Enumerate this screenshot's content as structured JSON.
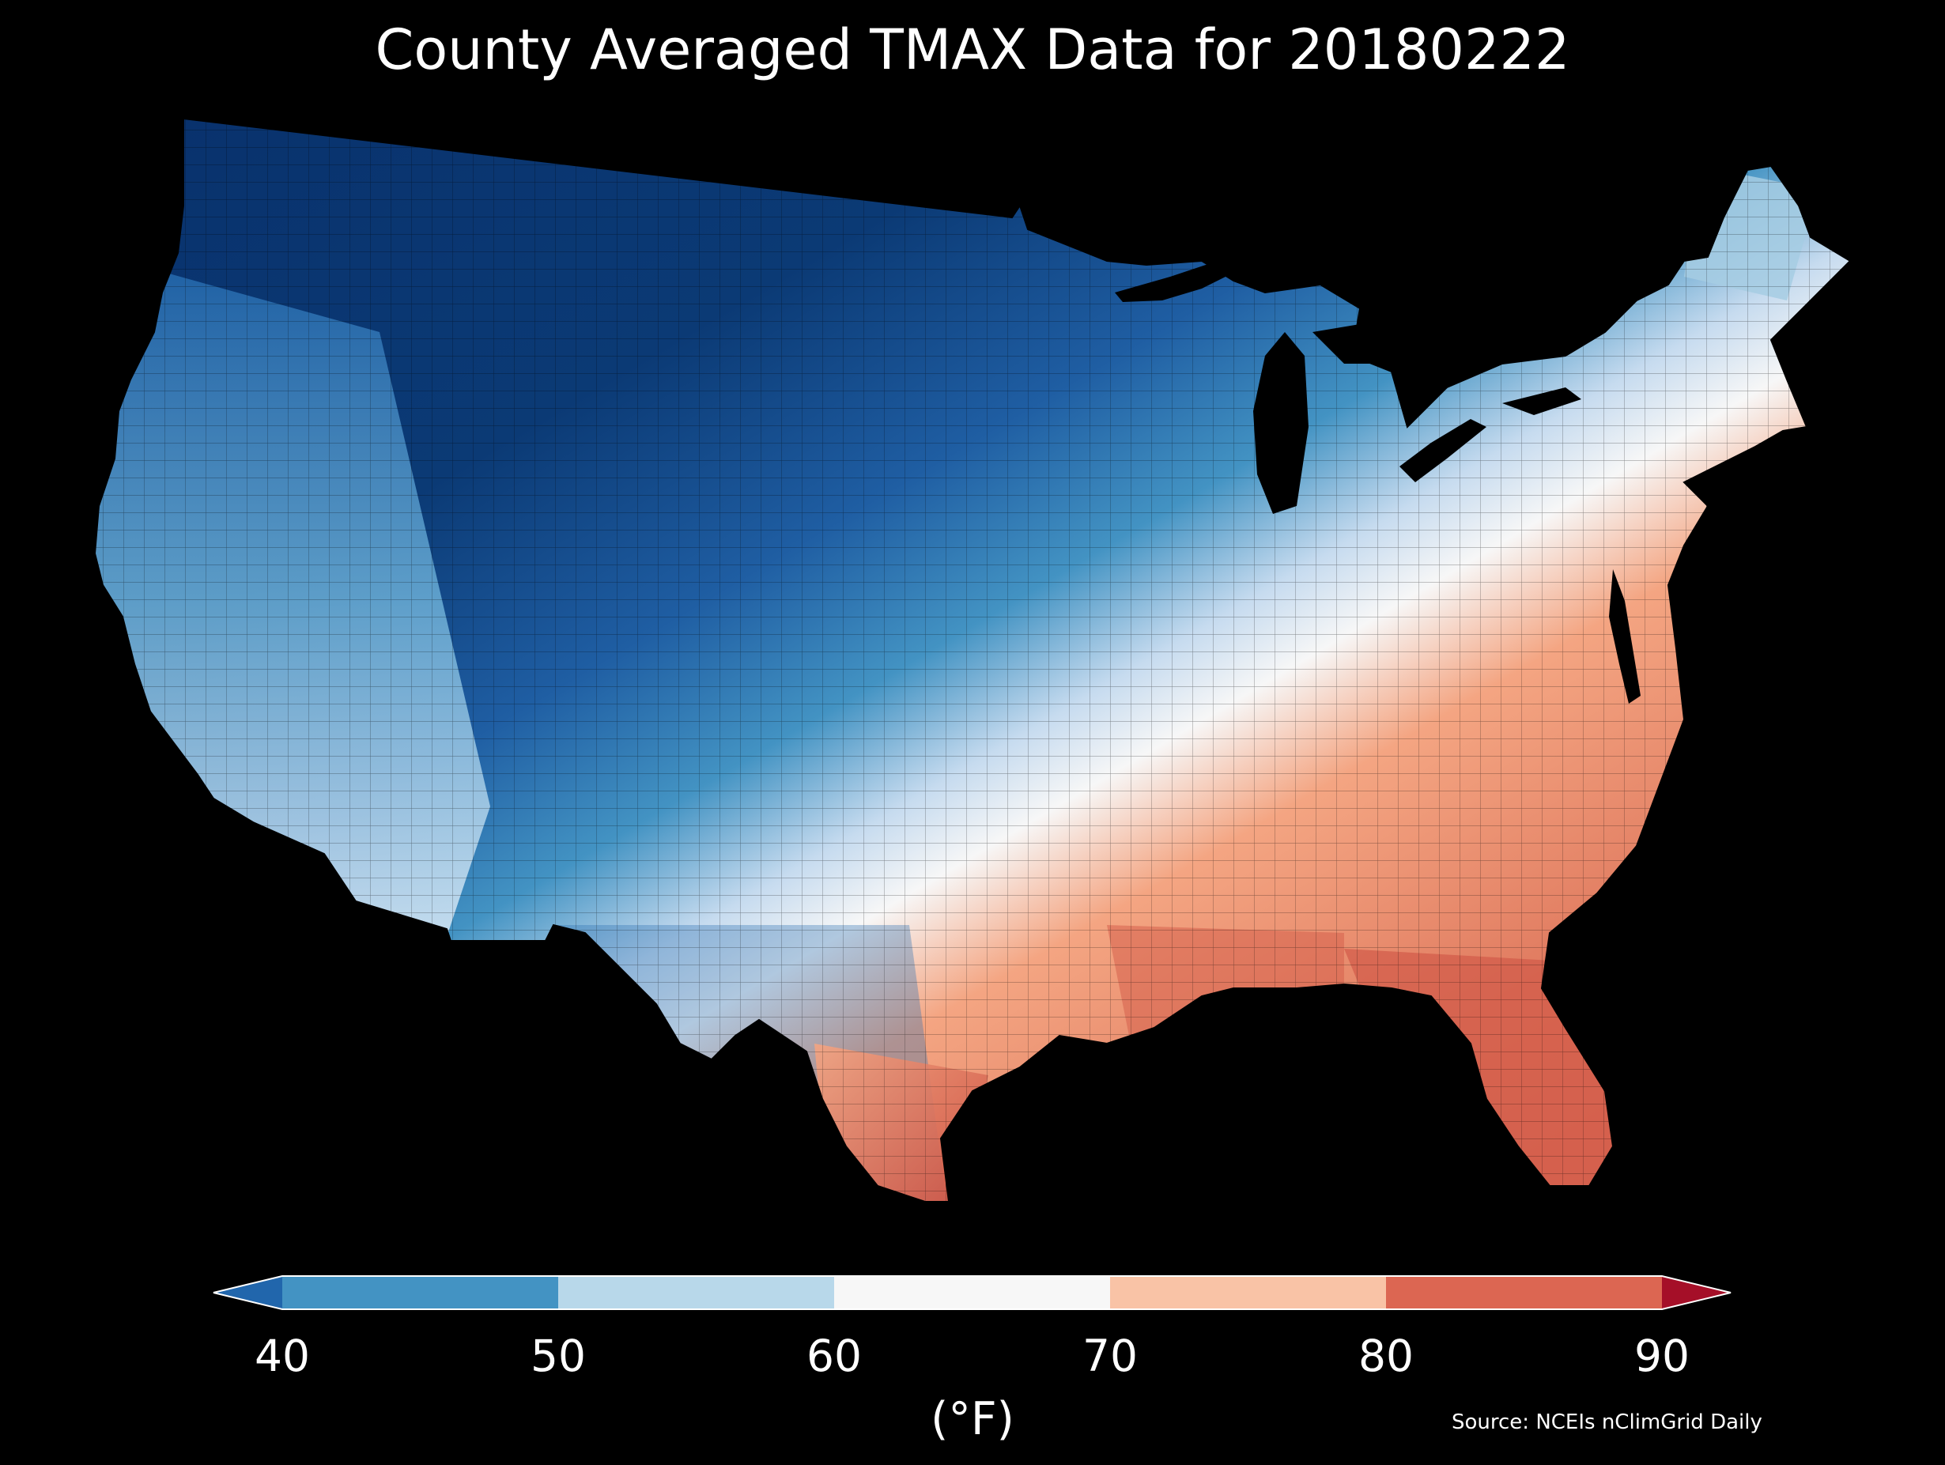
{
  "title": "County Averaged TMAX Data for 20180222",
  "colorbar": {
    "unit_label": "(°F)",
    "tick_labels": [
      "40",
      "50",
      "60",
      "70",
      "80",
      "90"
    ],
    "bins": [
      {
        "from": null,
        "to": 40,
        "color": "#2166ac"
      },
      {
        "from": 40,
        "to": 50,
        "color": "#4393c3"
      },
      {
        "from": 50,
        "to": 60,
        "color": "#92c5de"
      },
      {
        "from": 60,
        "to": 70,
        "color": "#f7f7f7"
      },
      {
        "from": 70,
        "to": 80,
        "color": "#f4a582"
      },
      {
        "from": 80,
        "to": 90,
        "color": "#d6604d"
      },
      {
        "from": 90,
        "to": null,
        "color": "#b2182b"
      }
    ],
    "extend": "both"
  },
  "source": "Source: NCEIs nClimGrid Daily",
  "map": {
    "region": "Contiguous United States counties",
    "background": "#000000",
    "palette_low": "#08306b",
    "palette_high": "#b2182b"
  }
}
